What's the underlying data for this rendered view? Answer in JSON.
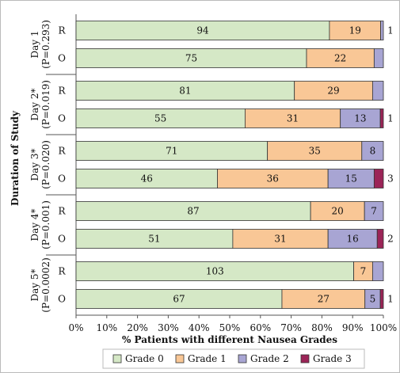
{
  "chart_data": {
    "type": "bar",
    "orientation": "horizontal",
    "stacked": "percent",
    "xlabel": "% Patients with different Nausea Grades",
    "ylabel": "Duration of Study",
    "xlim": [
      0,
      100
    ],
    "x_ticks": [
      "0%",
      "10%",
      "20%",
      "30%",
      "40%",
      "50%",
      "60%",
      "70%",
      "80%",
      "90%",
      "100%"
    ],
    "grid": false,
    "legend_position": "bottom",
    "series": [
      {
        "name": "Grade 0",
        "color": "#d5e8c6"
      },
      {
        "name": "Grade 1",
        "color": "#f9c796"
      },
      {
        "name": "Grade 2",
        "color": "#a8a5d3"
      },
      {
        "name": "Grade 3",
        "color": "#9b2457"
      }
    ],
    "groups": [
      {
        "day": "Day 1",
        "p": "(P=0.293)",
        "bars": [
          {
            "row": "R",
            "values": [
              94,
              19,
              1,
              0
            ],
            "outside_label": "1"
          },
          {
            "row": "O",
            "values": [
              75,
              22,
              3,
              0
            ],
            "outside_label": ""
          }
        ]
      },
      {
        "day": "Day 2*",
        "p": "(P=0.019)",
        "bars": [
          {
            "row": "R",
            "values": [
              81,
              29,
              4,
              0
            ],
            "outside_label": ""
          },
          {
            "row": "O",
            "values": [
              55,
              31,
              13,
              1
            ],
            "outside_label": "1"
          }
        ]
      },
      {
        "day": "Day 3*",
        "p": "(P=0.020)",
        "bars": [
          {
            "row": "R",
            "values": [
              71,
              35,
              8,
              0
            ],
            "outside_label": ""
          },
          {
            "row": "O",
            "values": [
              46,
              36,
              15,
              3
            ],
            "outside_label": "3"
          }
        ]
      },
      {
        "day": "Day 4*",
        "p": "(P=0.001)",
        "bars": [
          {
            "row": "R",
            "values": [
              87,
              20,
              7,
              0
            ],
            "outside_label": ""
          },
          {
            "row": "O",
            "values": [
              51,
              31,
              16,
              2
            ],
            "outside_label": "2"
          }
        ]
      },
      {
        "day": "Day 5*",
        "p": "(P=0.0002)",
        "bars": [
          {
            "row": "R",
            "values": [
              103,
              7,
              4,
              0
            ],
            "outside_label": ""
          },
          {
            "row": "O",
            "values": [
              67,
              27,
              5,
              1
            ],
            "outside_label": "1"
          }
        ]
      }
    ]
  }
}
